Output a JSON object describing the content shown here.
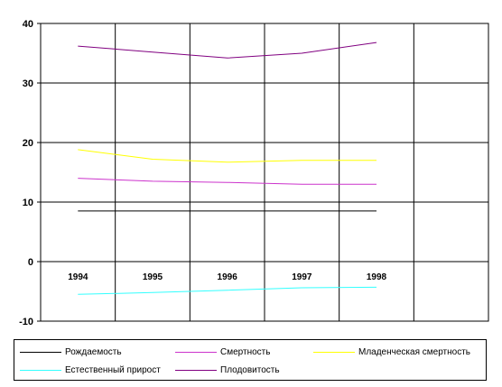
{
  "chart_data": {
    "type": "line",
    "x": [
      "1994",
      "1995",
      "1996",
      "1997",
      "1998"
    ],
    "ylim": [
      -10,
      40
    ],
    "yticks": [
      -10,
      0,
      10,
      20,
      30,
      40
    ],
    "ytick_labels": [
      "-10",
      "0",
      "10",
      "20",
      "30",
      "40"
    ],
    "x_slots": 6,
    "grid": true,
    "legend_position": "bottom",
    "series": [
      {
        "name": "Рождаемость",
        "values": [
          8.5,
          8.5,
          8.5,
          8.5,
          8.5
        ],
        "color": "#000000"
      },
      {
        "name": "Смертность",
        "values": [
          14.0,
          13.5,
          13.3,
          13.0,
          13.0
        ],
        "color": "#cc33cc"
      },
      {
        "name": "Младенческая смертность",
        "values": [
          18.8,
          17.2,
          16.7,
          17.0,
          17.0
        ],
        "color": "#ffff00"
      },
      {
        "name": "Естественный прирост",
        "values": [
          -5.5,
          -5.2,
          -4.8,
          -4.4,
          -4.3
        ],
        "color": "#33ffff"
      },
      {
        "name": "Плодовитость",
        "values": [
          36.2,
          35.2,
          34.2,
          35.0,
          36.8
        ],
        "color": "#800080"
      }
    ]
  }
}
